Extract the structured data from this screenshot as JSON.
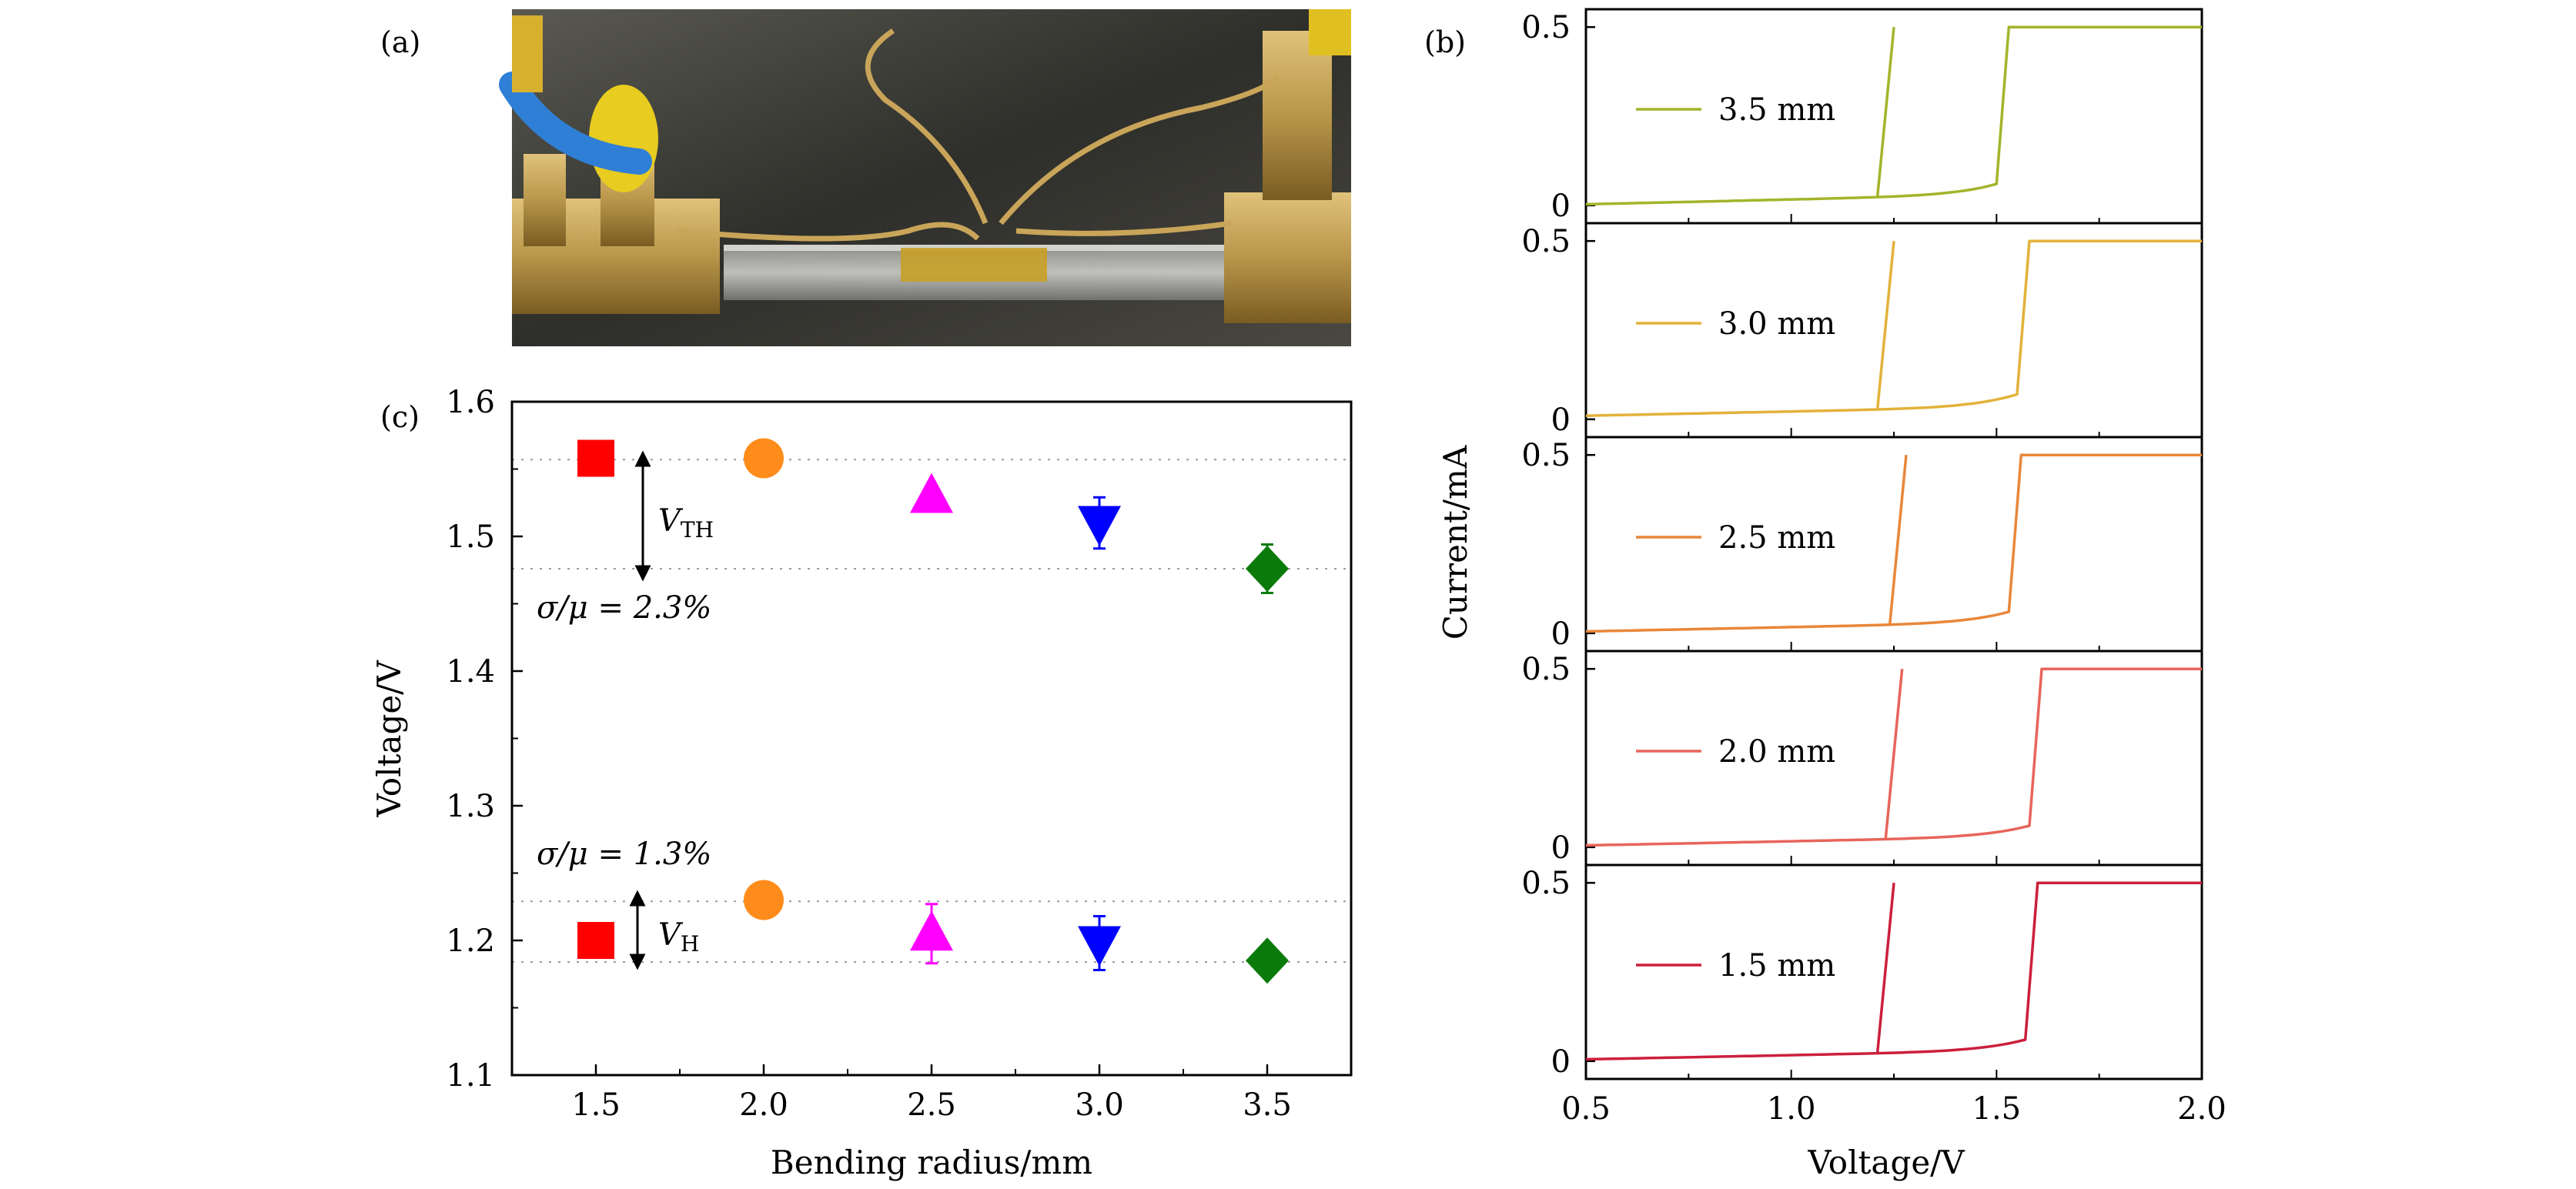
{
  "panel_labels": {
    "a": "(a)",
    "b": "(b)",
    "c": "(c)"
  },
  "photo": {
    "icon": "device-photo",
    "colors": {
      "brass": "#b8964a",
      "cable": "#2f7fd6",
      "tape": "#c8a028",
      "background": "#3a3a36"
    }
  },
  "chart_data": [
    {
      "panel": "c",
      "type": "scatter",
      "xlabel": "Bending radius/mm",
      "ylabel": "Voltage/V",
      "xlim": [
        1.25,
        3.75
      ],
      "ylim": [
        1.1,
        1.6
      ],
      "xticks": [
        "1.5",
        "2.0",
        "2.5",
        "3.0",
        "3.5"
      ],
      "yticks": [
        "1.1",
        "1.2",
        "1.3",
        "1.4",
        "1.5",
        "1.6"
      ],
      "x": [
        1.5,
        2.0,
        2.5,
        3.0,
        3.5
      ],
      "series": [
        {
          "group": "V_TH",
          "values": [
            1.558,
            1.558,
            1.53,
            1.51,
            1.476
          ],
          "errors": [
            0.004,
            0.004,
            0.008,
            0.019,
            0.018
          ]
        },
        {
          "group": "V_H",
          "values": [
            1.2,
            1.23,
            1.205,
            1.198,
            1.185
          ],
          "errors": [
            0.004,
            0.004,
            0.022,
            0.02,
            0.008
          ]
        }
      ],
      "markers": [
        {
          "shape": "square",
          "color": "#ff0000"
        },
        {
          "shape": "circle",
          "color": "#ff8c1a"
        },
        {
          "shape": "triangle-up",
          "color": "#ff00ff"
        },
        {
          "shape": "triangle-down",
          "color": "#0000ff"
        },
        {
          "shape": "diamond",
          "color": "#0a7a0a"
        }
      ],
      "reference_lines": [
        1.557,
        1.476,
        1.229,
        1.184
      ],
      "annotations": {
        "vth_label_main": "V",
        "vth_label_sub": "TH",
        "vh_label_main": "V",
        "vh_label_sub": "H",
        "vth_ratio": "σ/μ = 2.3%",
        "vh_ratio": "σ/μ = 1.3%"
      },
      "grid": false
    },
    {
      "panel": "b",
      "type": "line",
      "xlabel": "Voltage/V",
      "ylabel": "Current/mA",
      "xlim": [
        0.5,
        2.0
      ],
      "ylim": [
        -0.05,
        0.55
      ],
      "xticks": [
        "0.5",
        "1.0",
        "1.5",
        "2.0"
      ],
      "yticks": [
        "0",
        "0.5"
      ],
      "grid": false,
      "series": [
        {
          "name": "3.5 mm",
          "color": "#a3b42b",
          "v_on": 1.5,
          "v_off": 1.21,
          "leak_start": 0.003,
          "leak_end": 0.03,
          "knee": 0.06,
          "compliance": 0.5
        },
        {
          "name": "3.0 mm",
          "color": "#e2b23a",
          "v_on": 1.55,
          "v_off": 1.21,
          "leak_start": 0.01,
          "leak_end": 0.035,
          "knee": 0.07,
          "compliance": 0.5
        },
        {
          "name": "2.5 mm",
          "color": "#e8873a",
          "v_on": 1.53,
          "v_off": 1.24,
          "leak_start": 0.005,
          "leak_end": 0.03,
          "knee": 0.06,
          "compliance": 0.5
        },
        {
          "name": "2.0 mm",
          "color": "#e8655a",
          "v_on": 1.58,
          "v_off": 1.23,
          "leak_start": 0.005,
          "leak_end": 0.03,
          "knee": 0.06,
          "compliance": 0.5
        },
        {
          "name": "1.5 mm",
          "color": "#cc1f3c",
          "v_on": 1.57,
          "v_off": 1.21,
          "leak_start": 0.005,
          "leak_end": 0.03,
          "knee": 0.06,
          "compliance": 0.5
        }
      ]
    }
  ]
}
